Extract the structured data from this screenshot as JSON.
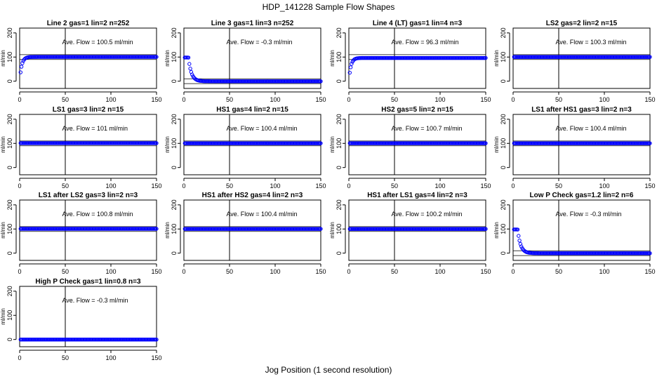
{
  "figure": {
    "title": "HDP_141228  Sample Flow Shapes",
    "xlabel": "Jog Position (1 second resolution)"
  },
  "colors": {
    "points": "#0000ff",
    "axes": "#000000",
    "background": "#ffffff"
  },
  "chart_data": [
    {
      "type": "scatter",
      "title": "Line 2 gas=1 lin=2 n=252",
      "ylabel": "ml/min",
      "annotation": "Ave. Flow =  100.5  ml/min",
      "xlim": [
        0,
        150
      ],
      "ylim": [
        -30,
        220
      ],
      "xticks": [
        0,
        50,
        100,
        150
      ],
      "yticks": [
        0,
        100,
        200
      ],
      "vline_x": 50,
      "hlines": [
        90,
        110
      ],
      "shape": "rise",
      "plateau": 100.5,
      "grid": false
    },
    {
      "type": "scatter",
      "title": "Line 3 gas=1 lin=3 n=252",
      "ylabel": "ml/min",
      "annotation": "Ave. Flow =  -0.3  ml/min",
      "xlim": [
        0,
        150
      ],
      "ylim": [
        -30,
        220
      ],
      "xticks": [
        0,
        50,
        100,
        150
      ],
      "yticks": [
        0,
        100,
        200
      ],
      "vline_x": 50,
      "hlines": [
        -10,
        10
      ],
      "shape": "decay",
      "plateau": -0.3,
      "grid": false
    },
    {
      "type": "scatter",
      "title": "Line 4 (LT) gas=1 lin=4 n=3",
      "ylabel": "ml/min",
      "annotation": "Ave. Flow =  96.3  ml/min",
      "xlim": [
        0,
        150
      ],
      "ylim": [
        -30,
        220
      ],
      "xticks": [
        0,
        50,
        100,
        150
      ],
      "yticks": [
        0,
        100,
        200
      ],
      "vline_x": 50,
      "hlines": [
        90,
        110
      ],
      "shape": "rise",
      "plateau": 96.3,
      "grid": false
    },
    {
      "type": "scatter",
      "title": "LS2 gas=2 lin=2 n=15",
      "ylabel": "ml/min",
      "annotation": "Ave. Flow =  100.3  ml/min",
      "xlim": [
        0,
        150
      ],
      "ylim": [
        -30,
        220
      ],
      "xticks": [
        0,
        50,
        100,
        150
      ],
      "yticks": [
        0,
        100,
        200
      ],
      "vline_x": 50,
      "hlines": [
        90,
        110
      ],
      "shape": "flat",
      "plateau": 100.3,
      "grid": false
    },
    {
      "type": "scatter",
      "title": "LS1 gas=3 lin=2 n=15",
      "ylabel": "ml/min",
      "annotation": "Ave. Flow =  101  ml/min",
      "xlim": [
        0,
        150
      ],
      "ylim": [
        -30,
        220
      ],
      "xticks": [
        0,
        50,
        100,
        150
      ],
      "yticks": [
        0,
        100,
        200
      ],
      "vline_x": 50,
      "hlines": [
        90,
        110
      ],
      "shape": "flat",
      "plateau": 101,
      "grid": false
    },
    {
      "type": "scatter",
      "title": "HS1 gas=4 lin=2 n=15",
      "ylabel": "ml/min",
      "annotation": "Ave. Flow =  100.4  ml/min",
      "xlim": [
        0,
        150
      ],
      "ylim": [
        -30,
        220
      ],
      "xticks": [
        0,
        50,
        100,
        150
      ],
      "yticks": [
        0,
        100,
        200
      ],
      "vline_x": 50,
      "hlines": [
        90,
        110
      ],
      "shape": "flat",
      "plateau": 100.4,
      "grid": false
    },
    {
      "type": "scatter",
      "title": "HS2 gas=5 lin=2 n=15",
      "ylabel": "ml/min",
      "annotation": "Ave. Flow =  100.7  ml/min",
      "xlim": [
        0,
        150
      ],
      "ylim": [
        -30,
        220
      ],
      "xticks": [
        0,
        50,
        100,
        150
      ],
      "yticks": [
        0,
        100,
        200
      ],
      "vline_x": 50,
      "hlines": [
        90,
        110
      ],
      "shape": "flat",
      "plateau": 100.7,
      "grid": false
    },
    {
      "type": "scatter",
      "title": "LS1 after HS1 gas=3 lin=2 n=3",
      "ylabel": "ml/min",
      "annotation": "Ave. Flow =  100.4  ml/min",
      "xlim": [
        0,
        150
      ],
      "ylim": [
        -30,
        220
      ],
      "xticks": [
        0,
        50,
        100,
        150
      ],
      "yticks": [
        0,
        100,
        200
      ],
      "vline_x": 50,
      "hlines": [
        90,
        110
      ],
      "shape": "flat",
      "plateau": 100.4,
      "grid": false
    },
    {
      "type": "scatter",
      "title": "LS1 after LS2 gas=3 lin=2 n=3",
      "ylabel": "ml/min",
      "annotation": "Ave. Flow =  100.8  ml/min",
      "xlim": [
        0,
        150
      ],
      "ylim": [
        -30,
        220
      ],
      "xticks": [
        0,
        50,
        100,
        150
      ],
      "yticks": [
        0,
        100,
        200
      ],
      "vline_x": 50,
      "hlines": [
        90,
        110
      ],
      "shape": "flat",
      "plateau": 100.8,
      "grid": false
    },
    {
      "type": "scatter",
      "title": "HS1 after HS2 gas=4 lin=2 n=3",
      "ylabel": "ml/min",
      "annotation": "Ave. Flow =  100.4  ml/min",
      "xlim": [
        0,
        150
      ],
      "ylim": [
        -30,
        220
      ],
      "xticks": [
        0,
        50,
        100,
        150
      ],
      "yticks": [
        0,
        100,
        200
      ],
      "vline_x": 50,
      "hlines": [
        90,
        110
      ],
      "shape": "flat",
      "plateau": 100.4,
      "grid": false
    },
    {
      "type": "scatter",
      "title": "HS1 after LS1 gas=4 lin=2 n=3",
      "ylabel": "ml/min",
      "annotation": "Ave. Flow =  100.2  ml/min",
      "xlim": [
        0,
        150
      ],
      "ylim": [
        -30,
        220
      ],
      "xticks": [
        0,
        50,
        100,
        150
      ],
      "yticks": [
        0,
        100,
        200
      ],
      "vline_x": 50,
      "hlines": [
        90,
        110
      ],
      "shape": "flat",
      "plateau": 100.2,
      "grid": false
    },
    {
      "type": "scatter",
      "title": "Low P Check gas=1.2 lin=2 n=6",
      "ylabel": "ml/min",
      "annotation": "Ave. Flow =  -0.3  ml/min",
      "xlim": [
        0,
        150
      ],
      "ylim": [
        -30,
        220
      ],
      "xticks": [
        0,
        50,
        100,
        150
      ],
      "yticks": [
        0,
        100,
        200
      ],
      "vline_x": 50,
      "hlines": [
        -10,
        10
      ],
      "shape": "decay",
      "plateau": -0.3,
      "grid": false
    },
    {
      "type": "scatter",
      "title": "High P Check gas=1 lin=0.8 n=3",
      "ylabel": "ml/min",
      "annotation": "Ave. Flow =  -0.3  ml/min",
      "xlim": [
        0,
        150
      ],
      "ylim": [
        -30,
        220
      ],
      "xticks": [
        0,
        50,
        100,
        150
      ],
      "yticks": [
        0,
        100,
        200
      ],
      "vline_x": 50,
      "hlines": [],
      "shape": "flat",
      "plateau": -0.3,
      "grid": false
    }
  ]
}
